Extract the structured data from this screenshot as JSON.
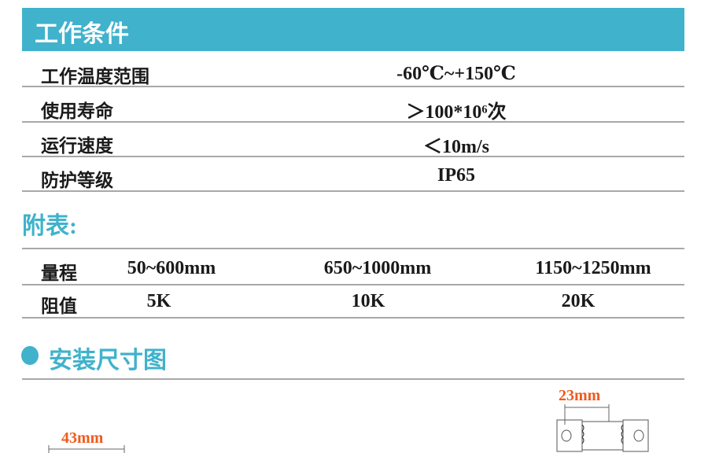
{
  "conditions": {
    "title": "工作条件",
    "rows": [
      {
        "label": "工作温度范围",
        "value": "-60℃~+150℃"
      },
      {
        "label": "使用寿命",
        "value": "＞100*10⁶次"
      },
      {
        "label": "运行速度",
        "value": "＜10m/s"
      },
      {
        "label": "防护等级",
        "value": "IP65"
      }
    ]
  },
  "appendix": {
    "title": "附表:",
    "rows": [
      {
        "label": "量程",
        "cells": [
          "50~600mm",
          "650~1000mm",
          "1150~1250mm"
        ]
      },
      {
        "label": "阻值",
        "cells": [
          "5K",
          "10K",
          "20K"
        ]
      }
    ]
  },
  "install": {
    "title": "安装尺寸图",
    "dim_left": "43mm",
    "dim_right": "23mm"
  },
  "colors": {
    "accent": "#40b2cc",
    "dimension": "#f05a1e"
  }
}
